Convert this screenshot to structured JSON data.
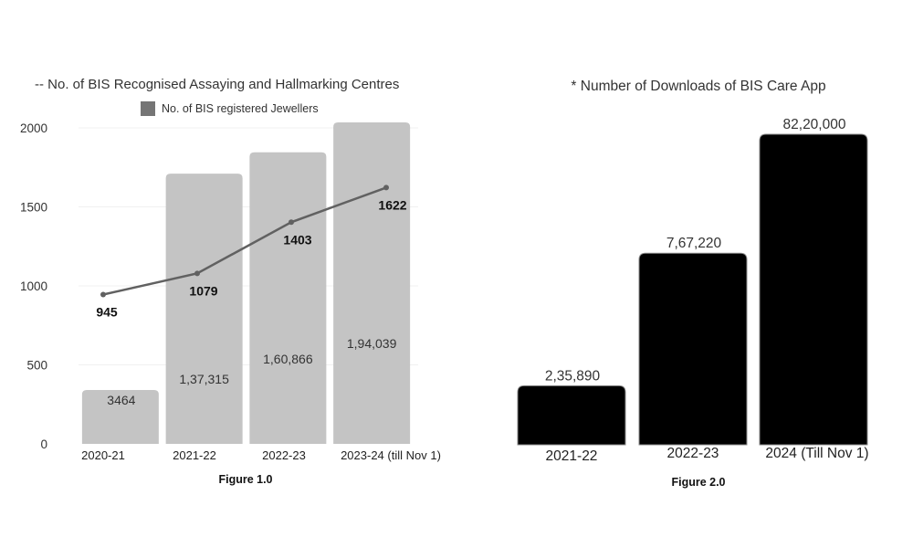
{
  "chart_data": [
    {
      "type": "bar+line",
      "title_line_series": "-- No. of BIS Recognised Assaying and Hallmarking Centres",
      "legend": [
        {
          "label": "No. of BIS registered Jewellers",
          "marker": "square",
          "color": "#757575"
        }
      ],
      "categories": [
        "2020-21",
        "2021-22",
        "2022-23",
        "2023-24 (till Nov 1)"
      ],
      "series": [
        {
          "name": "No. of BIS registered Jewellers",
          "kind": "bar",
          "color": "#c4c4c4",
          "values": [
            3464,
            137315,
            160866,
            194039
          ],
          "value_labels": [
            "3464",
            "1,37,315",
            "1,60,866",
            "1,94,039"
          ]
        },
        {
          "name": "No. of BIS Recognised Assaying and Hallmarking Centres",
          "kind": "line",
          "color": "#616161",
          "values": [
            945,
            1079,
            1403,
            1622
          ],
          "value_labels": [
            "945",
            "1079",
            "1403",
            "1622"
          ]
        }
      ],
      "y_ticks": [
        "0",
        "500",
        "1000",
        "1500",
        "2000"
      ],
      "ylim": [
        0,
        2000
      ],
      "grid": true,
      "legend_position": "top-center",
      "caption": "Figure 1.0"
    },
    {
      "type": "bar",
      "title": "* Number of Downloads of BIS Care App",
      "categories": [
        "2021-22",
        "2022-23",
        "2024 (Till Nov 1)"
      ],
      "values": [
        235890,
        767220,
        8220000
      ],
      "value_labels": [
        "2,35,890",
        "7,67,220",
        "82,20,000"
      ],
      "color": "#000000",
      "grid": false,
      "caption": "Figure 2.0"
    }
  ]
}
